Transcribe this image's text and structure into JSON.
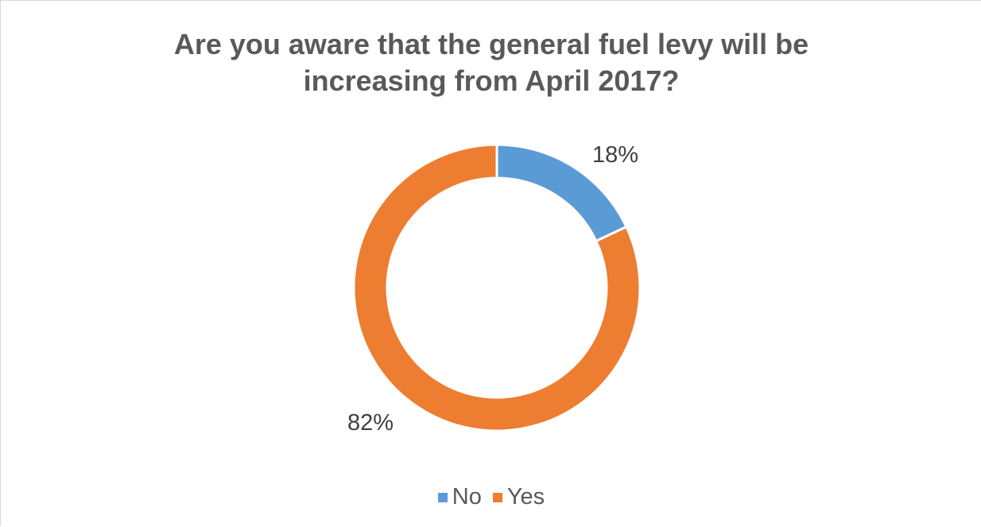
{
  "chart_data": {
    "type": "pie",
    "variant": "donut",
    "title_lines": [
      "Are you aware that the general fuel levy will be",
      "increasing from April 2017?"
    ],
    "categories": [
      "No",
      "Yes"
    ],
    "values": [
      18,
      82
    ],
    "value_labels": [
      "18%",
      "82%"
    ],
    "colors": [
      "#5b9bd5",
      "#ed7d31"
    ],
    "legend_position": "bottom"
  }
}
